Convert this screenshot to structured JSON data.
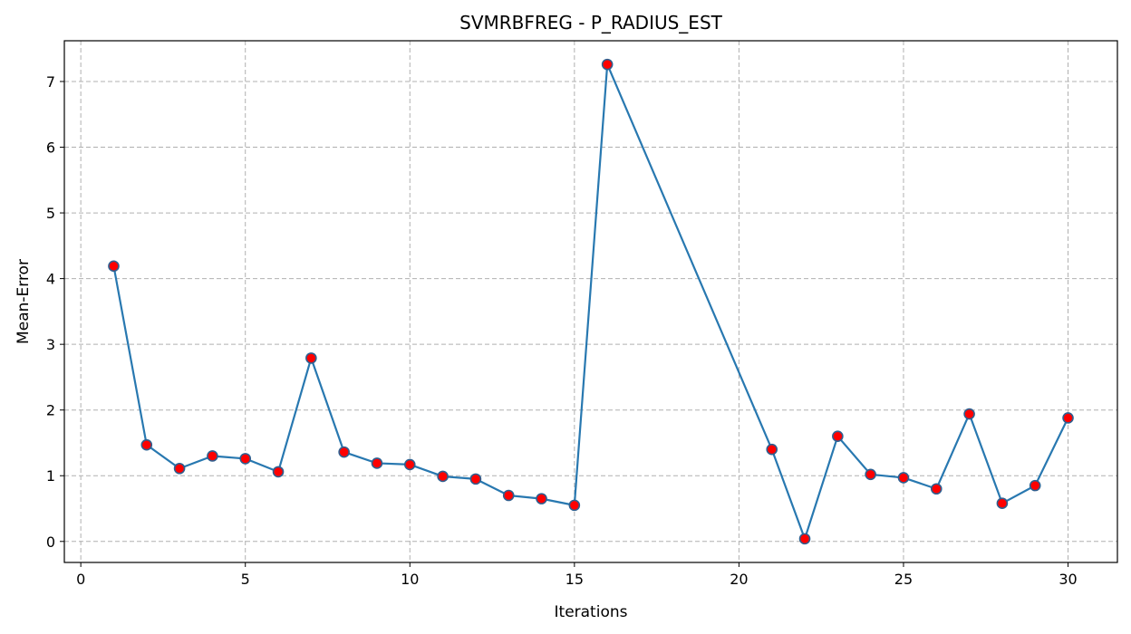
{
  "chart_data": {
    "type": "line",
    "title": "SVMRBFREG - P_RADIUS_EST",
    "xlabel": "Iterations",
    "ylabel": "Mean-Error",
    "xlim": [
      -0.5,
      31.5
    ],
    "ylim": [
      -0.32,
      7.62
    ],
    "xticks": [
      0,
      5,
      10,
      15,
      20,
      25,
      30
    ],
    "yticks": [
      0,
      1,
      2,
      3,
      4,
      5,
      6,
      7
    ],
    "grid": true,
    "colors": {
      "line": "#2878b0",
      "marker_fill": "#ff0000",
      "marker_edge": "#2f5f8f",
      "grid": "#b0b0b0"
    },
    "series": [
      {
        "x": [
          1,
          2,
          3,
          4,
          5,
          6,
          7,
          8,
          9,
          10,
          11,
          12,
          13,
          14,
          15,
          16,
          21,
          22,
          23,
          24,
          25,
          26,
          27,
          28,
          29,
          30
        ],
        "y": [
          4.19,
          1.47,
          1.11,
          1.3,
          1.26,
          1.06,
          2.79,
          1.36,
          1.19,
          1.17,
          0.99,
          0.95,
          0.7,
          0.65,
          0.55,
          7.26,
          1.4,
          0.04,
          1.6,
          1.02,
          0.97,
          0.8,
          1.94,
          0.58,
          0.85,
          1.88
        ]
      }
    ]
  }
}
